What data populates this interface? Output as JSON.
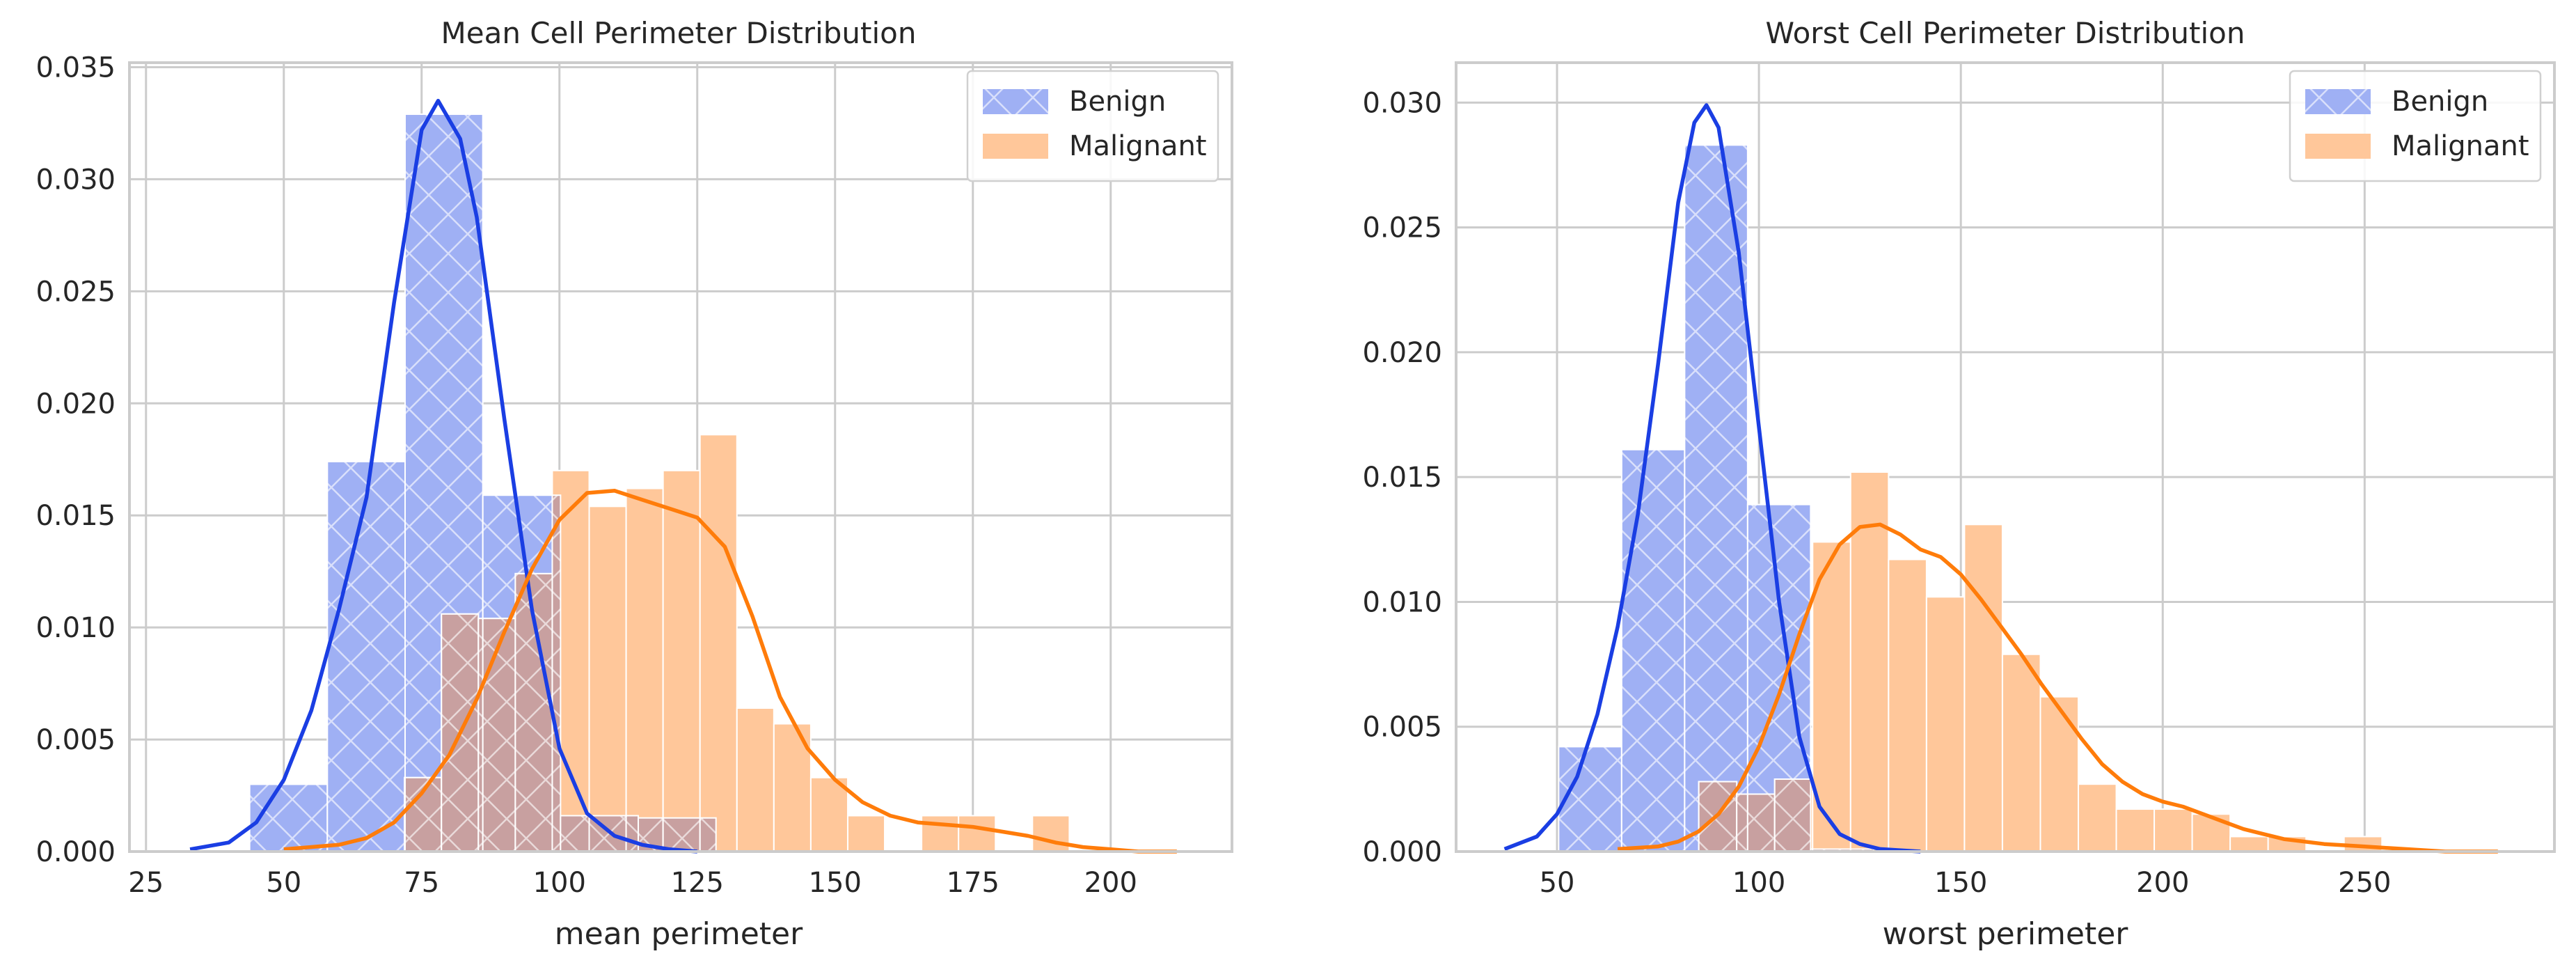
{
  "chart_data": [
    {
      "type": "bar",
      "title": "Mean Cell Perimeter Distribution",
      "xlabel": "mean perimeter",
      "ylabel": "",
      "xlim": [
        22,
        222
      ],
      "ylim": [
        0,
        0.0352
      ],
      "xticks": [
        25,
        50,
        75,
        100,
        125,
        150,
        175,
        200
      ],
      "xtick_labels": [
        "25",
        "50",
        "75",
        "100",
        "125",
        "150",
        "175",
        "200"
      ],
      "yticks": [
        0,
        0.005,
        0.01,
        0.015,
        0.02,
        0.025,
        0.03,
        0.035
      ],
      "ytick_labels": [
        "0.000",
        "0.005",
        "0.010",
        "0.015",
        "0.020",
        "0.025",
        "0.030",
        "0.035"
      ],
      "grid": true,
      "legend_position": "top-right",
      "colors": {
        "Benign": "#1a3ee3",
        "Malignant": "#ff7c0a",
        "Benign_fill": "#9fb0f4",
        "Malignant_fill": "#ffc79a",
        "overlap_fill": "#c8a0a0"
      },
      "series": [
        {
          "name": "Benign",
          "kind": "histogram",
          "hatch": "x",
          "bin_edges": [
            43.8,
            57.9,
            72.0,
            86.1,
            100.2,
            114.3,
            128.4
          ],
          "values": [
            0.003,
            0.0174,
            0.0329,
            0.0159,
            0.0016,
            0.0015
          ]
        },
        {
          "name": "Malignant",
          "kind": "histogram",
          "bin_edges": [
            71.9,
            78.6,
            85.3,
            92.0,
            98.7,
            105.4,
            112.1,
            118.8,
            125.5,
            132.2,
            138.9,
            145.6,
            152.3,
            159.0,
            165.7,
            172.4,
            179.1,
            185.8,
            192.5
          ],
          "values": [
            0.0033,
            0.0106,
            0.0104,
            0.0124,
            0.017,
            0.0154,
            0.0162,
            0.017,
            0.0186,
            0.0064,
            0.0057,
            0.0033,
            0.0016,
            0.0,
            0.0016,
            0.0016,
            0.0,
            0.0016
          ]
        },
        {
          "name": "Benign",
          "kind": "kde",
          "x": [
            33,
            40,
            45,
            50,
            55,
            60,
            65,
            70,
            75,
            78,
            82,
            85,
            90,
            95,
            100,
            105,
            110,
            115,
            120,
            125
          ],
          "y": [
            0.0001,
            0.0004,
            0.0013,
            0.0032,
            0.0063,
            0.0108,
            0.0158,
            0.0245,
            0.0322,
            0.0335,
            0.0318,
            0.0283,
            0.0193,
            0.0108,
            0.0046,
            0.0017,
            0.0007,
            0.0003,
            0.0001,
            0.0
          ]
        },
        {
          "name": "Malignant",
          "kind": "kde",
          "x": [
            50,
            60,
            65,
            70,
            75,
            80,
            85,
            90,
            95,
            100,
            105,
            110,
            115,
            120,
            125,
            130,
            135,
            140,
            145,
            150,
            155,
            160,
            165,
            170,
            175,
            180,
            185,
            190,
            195,
            200,
            205,
            212
          ],
          "y": [
            0.0001,
            0.0003,
            0.0006,
            0.0013,
            0.0026,
            0.0043,
            0.0068,
            0.0098,
            0.0126,
            0.0148,
            0.016,
            0.0161,
            0.0157,
            0.0153,
            0.0149,
            0.0136,
            0.0105,
            0.0069,
            0.0046,
            0.0032,
            0.0022,
            0.0016,
            0.0013,
            0.0012,
            0.0011,
            0.0009,
            0.0007,
            0.0004,
            0.0002,
            0.0001,
            0.0,
            0.0
          ]
        }
      ]
    },
    {
      "type": "bar",
      "title": "Worst Cell Perimeter Distribution",
      "xlabel": "worst perimeter",
      "ylabel": "",
      "xlim": [
        25,
        297
      ],
      "ylim": [
        0,
        0.0316
      ],
      "xticks": [
        50,
        100,
        150,
        200,
        250
      ],
      "xtick_labels": [
        "50",
        "100",
        "150",
        "200",
        "250"
      ],
      "yticks": [
        0,
        0.005,
        0.01,
        0.015,
        0.02,
        0.025,
        0.03
      ],
      "ytick_labels": [
        "0.000",
        "0.005",
        "0.010",
        "0.015",
        "0.020",
        "0.025",
        "0.030"
      ],
      "grid": true,
      "legend_position": "top-right",
      "colors": {
        "Benign": "#1a3ee3",
        "Malignant": "#ff7c0a",
        "Benign_fill": "#9fb0f4",
        "Malignant_fill": "#ffc79a",
        "overlap_fill": "#c8a0a0"
      },
      "series": [
        {
          "name": "Benign",
          "kind": "histogram",
          "hatch": "x",
          "bin_edges": [
            50.4,
            66.0,
            81.6,
            97.2,
            112.8,
            128.4
          ],
          "values": [
            0.0042,
            0.0161,
            0.0283,
            0.0139,
            0.0001
          ]
        },
        {
          "name": "Malignant",
          "kind": "histogram",
          "bin_edges": [
            85.1,
            94.5,
            103.9,
            113.3,
            122.7,
            132.1,
            141.5,
            150.9,
            160.3,
            169.7,
            179.1,
            188.5,
            197.9,
            207.3,
            216.7,
            226.1,
            235.5,
            244.9,
            254.3
          ],
          "values": [
            0.0028,
            0.0023,
            0.0029,
            0.0124,
            0.0152,
            0.0117,
            0.0102,
            0.0131,
            0.0079,
            0.0062,
            0.0027,
            0.0017,
            0.0017,
            0.0015,
            0.0006,
            0.0006,
            0.0,
            0.0006
          ]
        },
        {
          "name": "Benign",
          "kind": "kde",
          "x": [
            37,
            45,
            50,
            55,
            60,
            65,
            70,
            75,
            80,
            84,
            87,
            90,
            95,
            100,
            105,
            110,
            115,
            120,
            125,
            130,
            140
          ],
          "y": [
            0.0001,
            0.0006,
            0.0015,
            0.003,
            0.0055,
            0.009,
            0.0135,
            0.0195,
            0.026,
            0.0292,
            0.0299,
            0.029,
            0.024,
            0.017,
            0.01,
            0.0046,
            0.0018,
            0.0007,
            0.0003,
            0.0001,
            0.0
          ]
        },
        {
          "name": "Malignant",
          "kind": "kde",
          "x": [
            65,
            75,
            80,
            85,
            90,
            95,
            100,
            105,
            110,
            115,
            120,
            125,
            130,
            135,
            140,
            145,
            150,
            155,
            160,
            165,
            170,
            175,
            180,
            185,
            190,
            195,
            200,
            205,
            210,
            215,
            220,
            225,
            230,
            240,
            250,
            260,
            270,
            283
          ],
          "y": [
            0.0001,
            0.0002,
            0.0004,
            0.0008,
            0.0015,
            0.0026,
            0.0042,
            0.0063,
            0.0087,
            0.0109,
            0.0123,
            0.013,
            0.0131,
            0.0127,
            0.0121,
            0.0118,
            0.0111,
            0.0101,
            0.009,
            0.0079,
            0.0067,
            0.0056,
            0.0045,
            0.0035,
            0.0028,
            0.0023,
            0.002,
            0.0018,
            0.0015,
            0.0012,
            0.0009,
            0.0007,
            0.0005,
            0.0003,
            0.0002,
            0.0001,
            0.0,
            0.0
          ]
        }
      ]
    }
  ]
}
